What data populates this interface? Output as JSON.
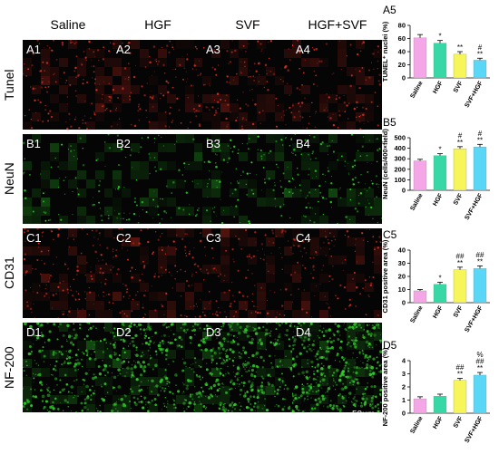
{
  "columns": [
    "Saline",
    "HGF",
    "SVF",
    "HGF+SVF"
  ],
  "rows": [
    {
      "label": "Tunel",
      "panels": [
        "A1",
        "A2",
        "A3",
        "A4"
      ],
      "color": "#e03020"
    },
    {
      "label": "NeuN",
      "panels": [
        "B1",
        "B2",
        "B3",
        "B4"
      ],
      "color": "#2ee02a"
    },
    {
      "label": "CD31",
      "panels": [
        "C1",
        "C2",
        "C3",
        "C4"
      ],
      "color": "#e03020"
    },
    {
      "label": "NF-200",
      "panels": [
        "D1",
        "D2",
        "D3",
        "D4"
      ],
      "color": "#32d02a"
    }
  ],
  "scale_bar": "50μm",
  "bar_colors": [
    "#f4a6e6",
    "#38d8a6",
    "#f6f65a",
    "#5ad6f6"
  ],
  "chart_data": [
    {
      "panel_label": "A5",
      "type": "bar",
      "categories": [
        "Saline",
        "HGF",
        "SVF",
        "SVF+HGF"
      ],
      "values": [
        61,
        53,
        36,
        27
      ],
      "errors": [
        5,
        4,
        4,
        3
      ],
      "annotations": [
        "",
        "*",
        "**",
        "#\n**"
      ],
      "ylabel": "TUNEL⁺ nuclei (%)",
      "ylim": [
        0,
        80
      ],
      "yticks": [
        0,
        20,
        40,
        60,
        80
      ]
    },
    {
      "panel_label": "B5",
      "type": "bar",
      "categories": [
        "Saline",
        "HGF",
        "SVF",
        "SVF+HGF"
      ],
      "values": [
        280,
        330,
        395,
        412
      ],
      "errors": [
        15,
        18,
        20,
        25
      ],
      "annotations": [
        "",
        "*",
        "#\n**",
        "#\n**"
      ],
      "ylabel": "NeuN (cells/400×field)",
      "ylim": [
        0,
        500
      ],
      "yticks": [
        0,
        100,
        200,
        300,
        400,
        500
      ]
    },
    {
      "panel_label": "C5",
      "type": "bar",
      "categories": [
        "Saline",
        "HGF",
        "SVF",
        "SVF+HGF"
      ],
      "values": [
        9,
        14,
        25,
        26
      ],
      "errors": [
        1,
        1.5,
        2,
        2
      ],
      "annotations": [
        "",
        "*",
        "##\n**",
        "##\n**"
      ],
      "ylabel": "CD31 positive area (%)",
      "ylim": [
        0,
        40
      ],
      "yticks": [
        0,
        10,
        20,
        30,
        40
      ]
    },
    {
      "panel_label": "D5",
      "type": "bar",
      "categories": [
        "Saline",
        "HGF",
        "SVF",
        "SVF+HGF"
      ],
      "values": [
        1.1,
        1.3,
        2.5,
        2.9
      ],
      "errors": [
        0.15,
        0.15,
        0.15,
        0.2
      ],
      "annotations": [
        "",
        "",
        "##\n**",
        "%\n##\n**"
      ],
      "ylabel": "NF-200 positive area (%)",
      "ylim": [
        0,
        4
      ],
      "yticks": [
        0,
        1,
        2,
        3,
        4
      ]
    }
  ]
}
